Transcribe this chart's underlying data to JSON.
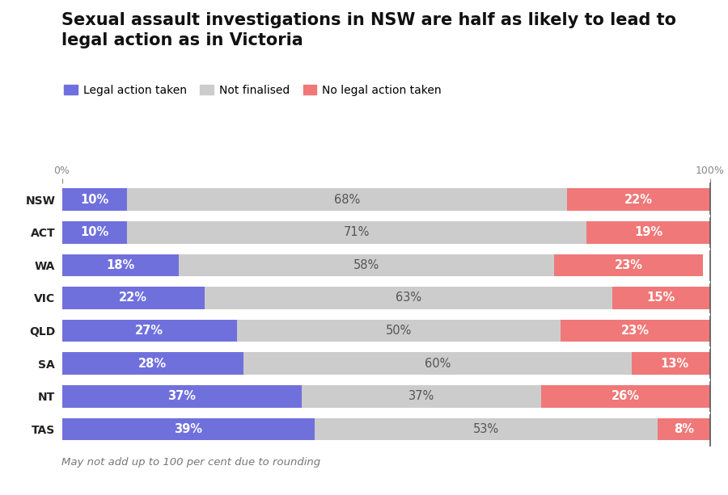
{
  "title_line1": "Sexual assault investigations in NSW are half as likely to lead to",
  "title_line2": "legal action as in Victoria",
  "footnote": "May not add up to 100 per cent due to rounding",
  "categories": [
    "NSW",
    "ACT",
    "WA",
    "VIC",
    "QLD",
    "SA",
    "NT",
    "TAS"
  ],
  "legal": [
    10,
    10,
    18,
    22,
    27,
    28,
    37,
    39
  ],
  "not_finalised": [
    68,
    71,
    58,
    63,
    50,
    60,
    37,
    53
  ],
  "no_legal": [
    22,
    19,
    23,
    15,
    23,
    13,
    26,
    8
  ],
  "color_legal": "#7070DD",
  "color_not_finalised": "#CCCCCC",
  "color_no_legal": "#F07878",
  "bar_height": 0.68,
  "legend_labels": [
    "Legal action taken",
    "Not finalised",
    "No legal action taken"
  ],
  "title_fontsize": 15,
  "label_fontsize": 10.5,
  "ytick_fontsize": 10,
  "footnote_fontsize": 9.5
}
